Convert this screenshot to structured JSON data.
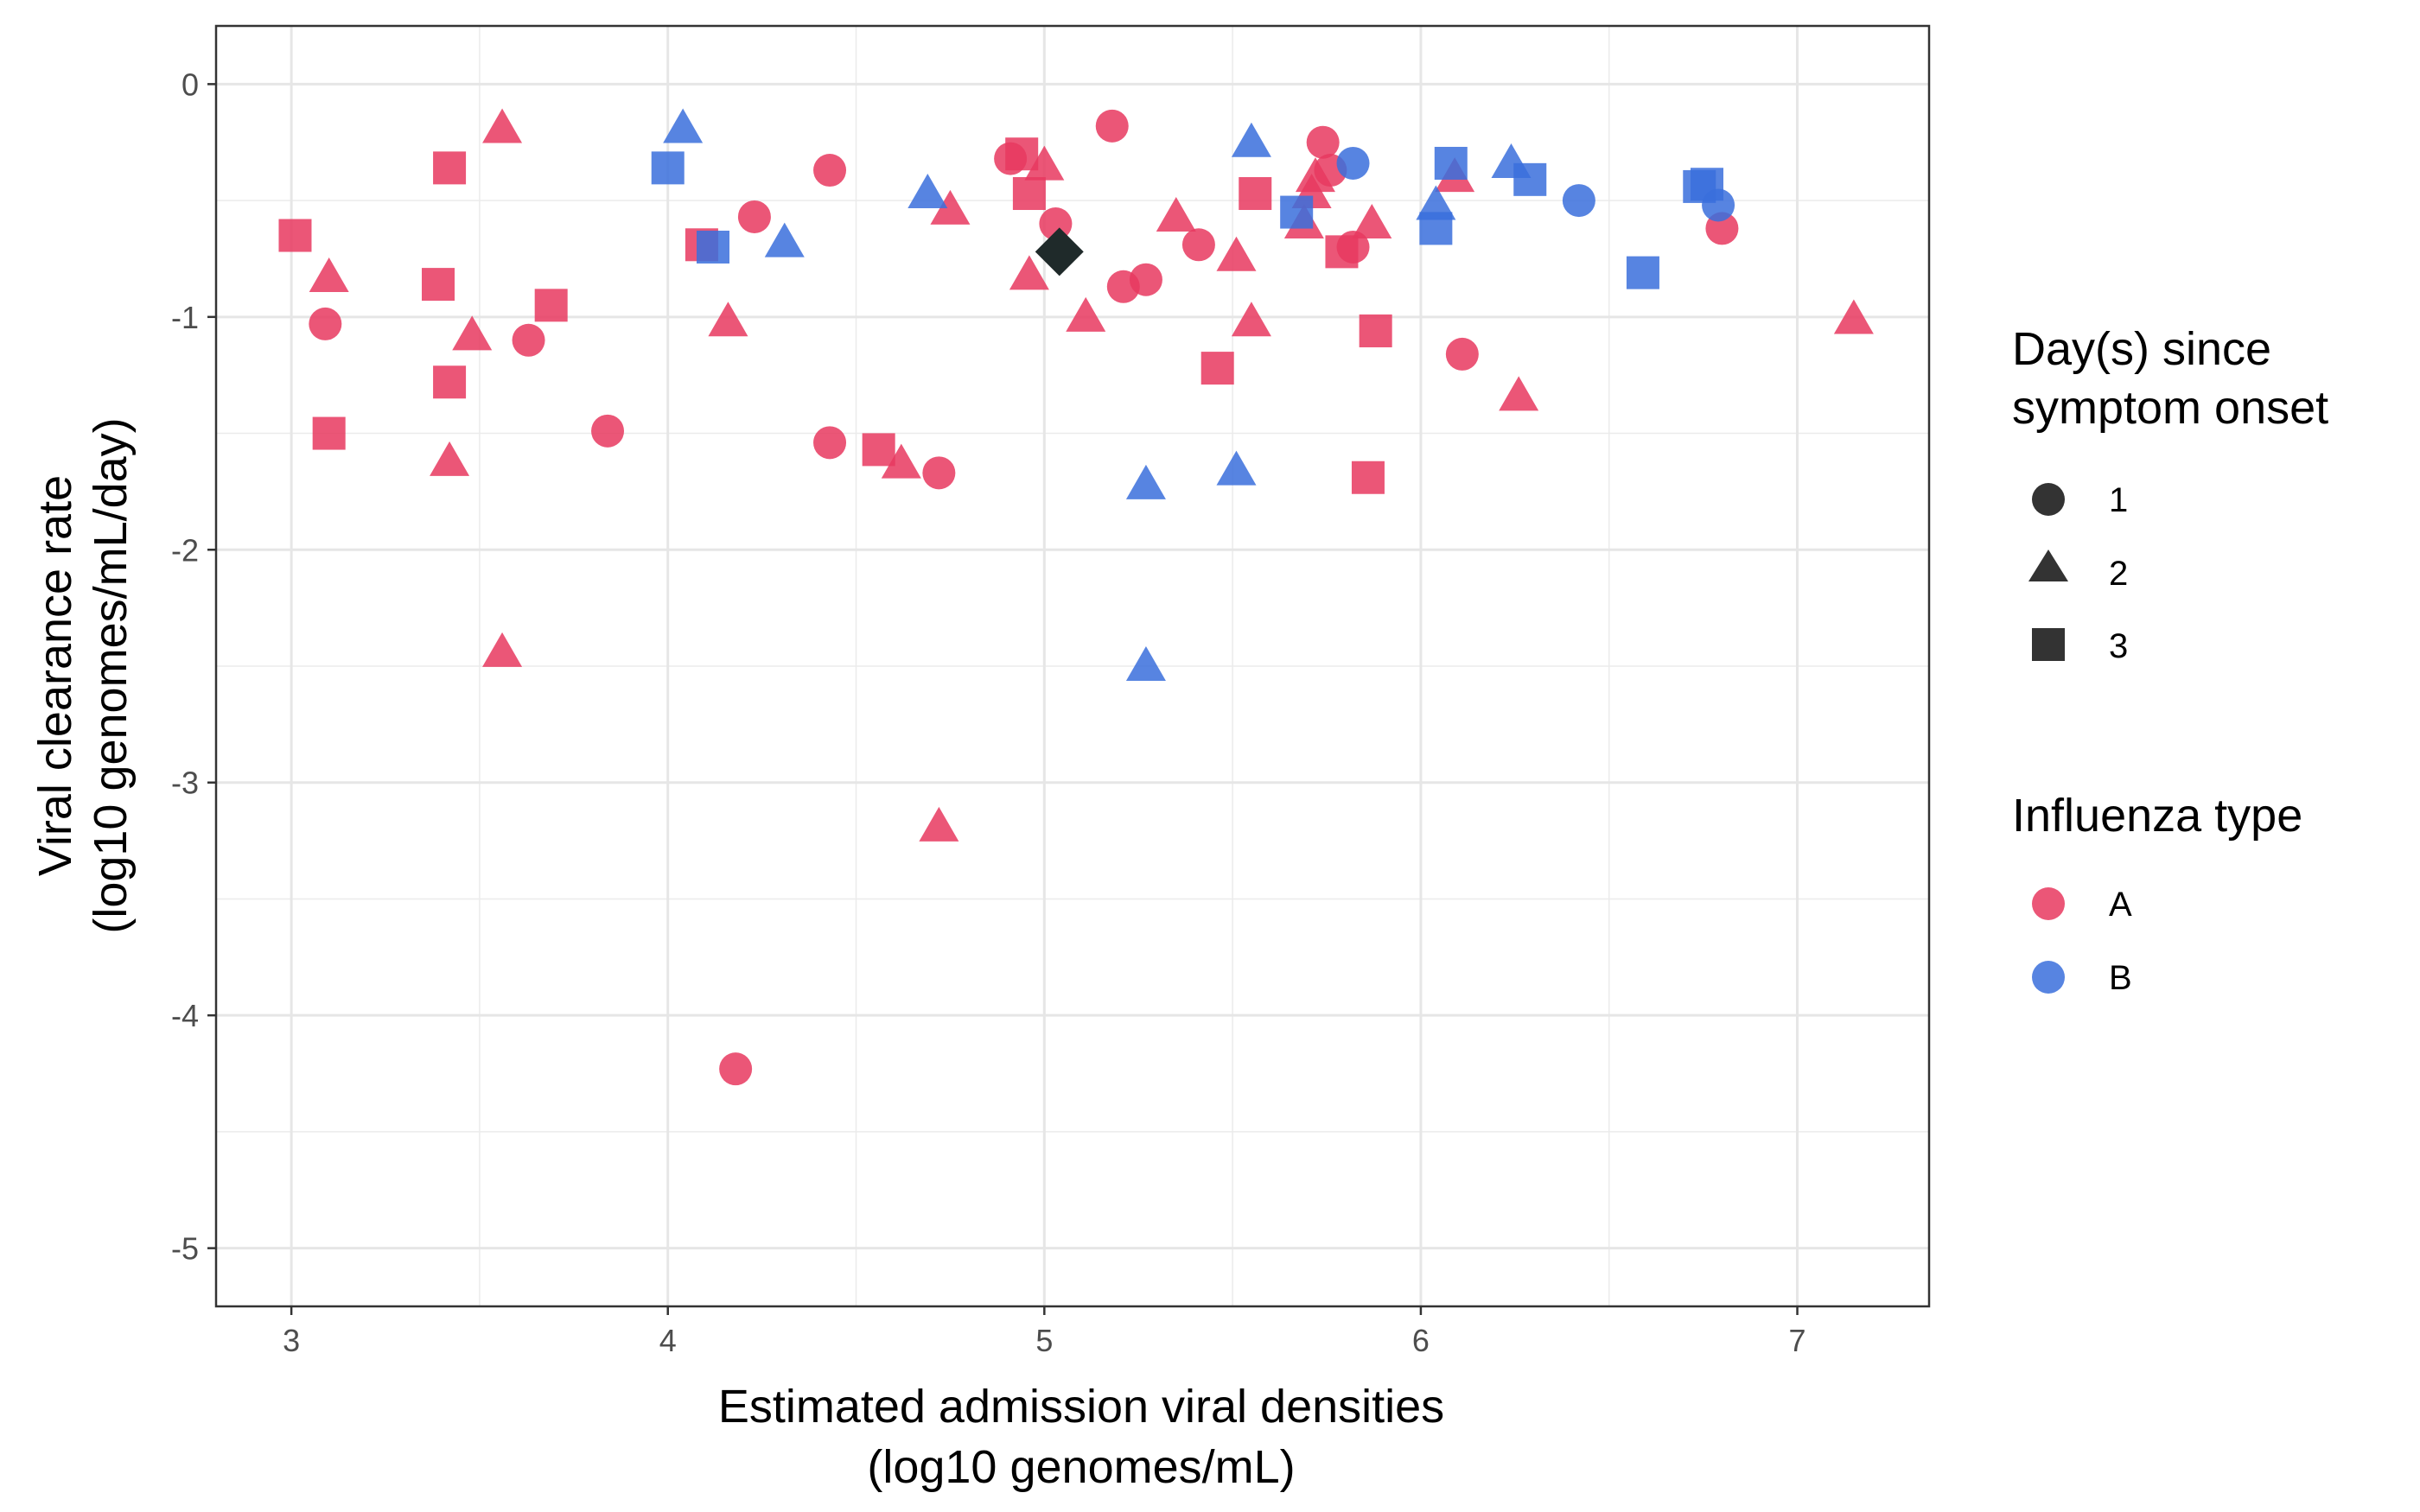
{
  "chart_data": {
    "type": "scatter",
    "xlabel": [
      "Estimated admission viral densities",
      "(log10 genomes/mL)"
    ],
    "ylabel": [
      "Viral clearance rate",
      "(log10 genomes/mL/day)"
    ],
    "xlim": [
      2.8,
      7.35
    ],
    "ylim": [
      -5.25,
      0.25
    ],
    "x_ticks": [
      3,
      4,
      5,
      6,
      7
    ],
    "y_ticks": [
      0,
      -1,
      -2,
      -3,
      -4,
      -5
    ],
    "x_tick_labels": [
      "3",
      "4",
      "5",
      "6",
      "7"
    ],
    "y_tick_labels": [
      "0",
      "-1",
      "-2",
      "-3",
      "-4",
      "-5"
    ],
    "grid": true,
    "legend_position": "right",
    "legends": {
      "shape": {
        "title": [
          "Day(s) since",
          "symptom onset"
        ],
        "entries": [
          {
            "label": "1",
            "shape": "circle"
          },
          {
            "label": "2",
            "shape": "triangle"
          },
          {
            "label": "3",
            "shape": "square"
          }
        ]
      },
      "color": {
        "title": [
          "Influenza type"
        ],
        "entries": [
          {
            "label": "A",
            "color": "#e8385f"
          },
          {
            "label": "B",
            "color": "#3a6fdc"
          }
        ]
      }
    },
    "colors": {
      "A": "#e8385f",
      "B": "#3a6fdc",
      "reference": "#1f2a2a"
    },
    "points": [
      {
        "x": 3.09,
        "y": -1.03,
        "type": "A",
        "day": 1
      },
      {
        "x": 3.63,
        "y": -1.1,
        "type": "A",
        "day": 1
      },
      {
        "x": 3.84,
        "y": -1.49,
        "type": "A",
        "day": 1
      },
      {
        "x": 4.18,
        "y": -4.23,
        "type": "A",
        "day": 1
      },
      {
        "x": 4.23,
        "y": -0.57,
        "type": "A",
        "day": 1
      },
      {
        "x": 4.43,
        "y": -0.37,
        "type": "A",
        "day": 1
      },
      {
        "x": 4.43,
        "y": -1.54,
        "type": "A",
        "day": 1
      },
      {
        "x": 4.72,
        "y": -1.67,
        "type": "A",
        "day": 1
      },
      {
        "x": 4.91,
        "y": -0.32,
        "type": "A",
        "day": 1
      },
      {
        "x": 5.03,
        "y": -0.6,
        "type": "A",
        "day": 1
      },
      {
        "x": 5.18,
        "y": -0.18,
        "type": "A",
        "day": 1
      },
      {
        "x": 5.21,
        "y": -0.87,
        "type": "A",
        "day": 1
      },
      {
        "x": 5.27,
        "y": -0.84,
        "type": "A",
        "day": 1
      },
      {
        "x": 5.41,
        "y": -0.69,
        "type": "A",
        "day": 1
      },
      {
        "x": 5.74,
        "y": -0.25,
        "type": "A",
        "day": 1
      },
      {
        "x": 5.76,
        "y": -0.37,
        "type": "A",
        "day": 1
      },
      {
        "x": 5.82,
        "y": -0.7,
        "type": "A",
        "day": 1
      },
      {
        "x": 6.11,
        "y": -1.16,
        "type": "A",
        "day": 1
      },
      {
        "x": 6.8,
        "y": -0.62,
        "type": "A",
        "day": 1
      },
      {
        "x": 5.82,
        "y": -0.34,
        "type": "B",
        "day": 1
      },
      {
        "x": 6.42,
        "y": -0.5,
        "type": "B",
        "day": 1
      },
      {
        "x": 6.79,
        "y": -0.52,
        "type": "B",
        "day": 1
      },
      {
        "x": 3.1,
        "y": -0.83,
        "type": "A",
        "day": 2
      },
      {
        "x": 3.42,
        "y": -1.62,
        "type": "A",
        "day": 2
      },
      {
        "x": 3.48,
        "y": -1.08,
        "type": "A",
        "day": 2
      },
      {
        "x": 3.56,
        "y": -0.19,
        "type": "A",
        "day": 2
      },
      {
        "x": 3.56,
        "y": -2.44,
        "type": "A",
        "day": 2
      },
      {
        "x": 4.16,
        "y": -1.02,
        "type": "A",
        "day": 2
      },
      {
        "x": 4.62,
        "y": -1.63,
        "type": "A",
        "day": 2
      },
      {
        "x": 4.72,
        "y": -3.19,
        "type": "A",
        "day": 2
      },
      {
        "x": 4.75,
        "y": -0.54,
        "type": "A",
        "day": 2
      },
      {
        "x": 4.96,
        "y": -0.82,
        "type": "A",
        "day": 2
      },
      {
        "x": 5.0,
        "y": -0.35,
        "type": "A",
        "day": 2
      },
      {
        "x": 5.11,
        "y": -1.0,
        "type": "A",
        "day": 2
      },
      {
        "x": 5.35,
        "y": -0.57,
        "type": "A",
        "day": 2
      },
      {
        "x": 5.51,
        "y": -0.74,
        "type": "A",
        "day": 2
      },
      {
        "x": 5.55,
        "y": -1.02,
        "type": "A",
        "day": 2
      },
      {
        "x": 5.69,
        "y": -0.6,
        "type": "A",
        "day": 2
      },
      {
        "x": 5.71,
        "y": -0.47,
        "type": "A",
        "day": 2
      },
      {
        "x": 5.72,
        "y": -0.4,
        "type": "A",
        "day": 2
      },
      {
        "x": 5.87,
        "y": -0.6,
        "type": "A",
        "day": 2
      },
      {
        "x": 6.09,
        "y": -0.4,
        "type": "A",
        "day": 2
      },
      {
        "x": 6.26,
        "y": -1.34,
        "type": "A",
        "day": 2
      },
      {
        "x": 7.15,
        "y": -1.01,
        "type": "A",
        "day": 2
      },
      {
        "x": 4.04,
        "y": -0.19,
        "type": "B",
        "day": 2
      },
      {
        "x": 4.31,
        "y": -0.68,
        "type": "B",
        "day": 2
      },
      {
        "x": 4.69,
        "y": -0.47,
        "type": "B",
        "day": 2
      },
      {
        "x": 5.27,
        "y": -1.72,
        "type": "B",
        "day": 2
      },
      {
        "x": 5.27,
        "y": -2.5,
        "type": "B",
        "day": 2
      },
      {
        "x": 5.51,
        "y": -1.66,
        "type": "B",
        "day": 2
      },
      {
        "x": 5.55,
        "y": -0.25,
        "type": "B",
        "day": 2
      },
      {
        "x": 6.04,
        "y": -0.52,
        "type": "B",
        "day": 2
      },
      {
        "x": 6.24,
        "y": -0.34,
        "type": "B",
        "day": 2
      },
      {
        "x": 3.01,
        "y": -0.65,
        "type": "A",
        "day": 3
      },
      {
        "x": 3.1,
        "y": -1.5,
        "type": "A",
        "day": 3
      },
      {
        "x": 3.39,
        "y": -0.86,
        "type": "A",
        "day": 3
      },
      {
        "x": 3.42,
        "y": -0.36,
        "type": "A",
        "day": 3
      },
      {
        "x": 3.42,
        "y": -1.28,
        "type": "A",
        "day": 3
      },
      {
        "x": 3.69,
        "y": -0.95,
        "type": "A",
        "day": 3
      },
      {
        "x": 4.09,
        "y": -0.69,
        "type": "A",
        "day": 3
      },
      {
        "x": 4.56,
        "y": -1.57,
        "type": "A",
        "day": 3
      },
      {
        "x": 4.94,
        "y": -0.3,
        "type": "A",
        "day": 3
      },
      {
        "x": 4.96,
        "y": -0.47,
        "type": "A",
        "day": 3
      },
      {
        "x": 5.46,
        "y": -1.22,
        "type": "A",
        "day": 3
      },
      {
        "x": 5.56,
        "y": -0.47,
        "type": "A",
        "day": 3
      },
      {
        "x": 5.79,
        "y": -0.72,
        "type": "A",
        "day": 3
      },
      {
        "x": 5.86,
        "y": -1.69,
        "type": "A",
        "day": 3
      },
      {
        "x": 5.88,
        "y": -1.06,
        "type": "A",
        "day": 3
      },
      {
        "x": 4.0,
        "y": -0.36,
        "type": "B",
        "day": 3
      },
      {
        "x": 4.12,
        "y": -0.7,
        "type": "B",
        "day": 3
      },
      {
        "x": 5.67,
        "y": -0.55,
        "type": "B",
        "day": 3
      },
      {
        "x": 6.04,
        "y": -0.62,
        "type": "B",
        "day": 3
      },
      {
        "x": 6.08,
        "y": -0.34,
        "type": "B",
        "day": 3
      },
      {
        "x": 6.29,
        "y": -0.41,
        "type": "B",
        "day": 3
      },
      {
        "x": 6.59,
        "y": -0.81,
        "type": "B",
        "day": 3
      },
      {
        "x": 6.74,
        "y": -0.44,
        "type": "B",
        "day": 3
      },
      {
        "x": 6.76,
        "y": -0.43,
        "type": "B",
        "day": 3
      }
    ],
    "reference_point": {
      "x": 5.04,
      "y": -0.72,
      "shape": "diamond"
    }
  }
}
